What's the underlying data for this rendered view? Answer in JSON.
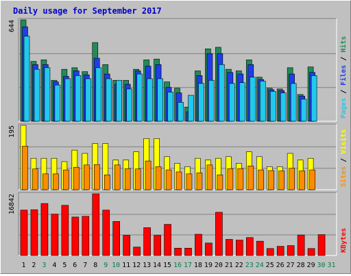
{
  "chart_data": {
    "type": "bar",
    "title": "Daily usage for September 2017",
    "categories": [
      "1",
      "2",
      "3",
      "4",
      "5",
      "6",
      "7",
      "8",
      "9",
      "10",
      "11",
      "12",
      "13",
      "14",
      "15",
      "16",
      "17",
      "18",
      "19",
      "20",
      "21",
      "22",
      "23",
      "24",
      "25",
      "26",
      "27",
      "28",
      "29",
      "30",
      "31"
    ],
    "weekend_days": [
      "3",
      "9",
      "10",
      "16",
      "17",
      "23",
      "24",
      "30",
      "31"
    ],
    "panels": [
      {
        "name": "hits-files-pages",
        "ymax_label": "644",
        "ymax": 644,
        "legend": [
          "Pages",
          "/",
          "Files",
          "/",
          "Hits"
        ],
        "series": [
          {
            "name": "Hits",
            "values": [
              644,
              380,
              390,
              260,
              330,
              340,
              315,
              500,
              360,
              260,
              260,
              330,
              390,
              395,
              250,
              210,
              90,
              320,
              460,
              470,
              330,
              320,
              390,
              280,
              210,
              205,
              340,
              170,
              345,
              0,
              0
            ]
          },
          {
            "name": "Files",
            "values": [
              600,
              360,
              360,
              250,
              285,
              320,
              295,
              400,
              300,
              235,
              235,
              320,
              350,
              360,
              215,
              180,
              60,
              290,
              430,
              430,
              310,
              300,
              360,
              265,
              200,
              195,
              300,
              160,
              310,
              0,
              0
            ]
          },
          {
            "name": "Pages",
            "values": [
              540,
              330,
              340,
              230,
              270,
              290,
              270,
              340,
              270,
              260,
              205,
              300,
              270,
              270,
              185,
              120,
              165,
              240,
              260,
              360,
              240,
              245,
              280,
              255,
              190,
              180,
              240,
              140,
              290,
              0,
              0
            ]
          }
        ],
        "colors": {
          "Hits": "#228b57",
          "Files": "#1f3ee8",
          "Pages": "#22c9ee"
        }
      },
      {
        "name": "visits-sites",
        "ymax_label": "195",
        "ymax": 195,
        "legend": [
          "Sites",
          "/",
          "Visits"
        ],
        "series": [
          {
            "name": "Visits",
            "values": [
              195,
              95,
              95,
              95,
              85,
              120,
              110,
              140,
              140,
              90,
              90,
              115,
              155,
              155,
              100,
              80,
              70,
              95,
              90,
              95,
              100,
              80,
              115,
              100,
              70,
              70,
              110,
              90,
              95,
              0,
              0
            ]
          },
          {
            "name": "Sites",
            "values": [
              132,
              63,
              48,
              48,
              60,
              68,
              75,
              76,
              45,
              75,
              64,
              63,
              87,
              70,
              60,
              54,
              48,
              51,
              75,
              45,
              64,
              64,
              72,
              60,
              58,
              57,
              65,
              57,
              60,
              0,
              0
            ]
          }
        ],
        "colors": {
          "Visits": "#ffff00",
          "Sites": "#ff8c00"
        }
      },
      {
        "name": "kbytes",
        "ymax_label": "16842",
        "ymax": 16842,
        "legend": [
          "KBytes"
        ],
        "series": [
          {
            "name": "KBytes",
            "values": [
              12400,
              12500,
              14200,
              11300,
              13700,
              10500,
              10700,
              16842,
              12400,
              9300,
              5500,
              2300,
              7600,
              5500,
              8500,
              2000,
              2000,
              5800,
              3400,
              11800,
              4400,
              4200,
              4900,
              3900,
              1900,
              2500,
              2700,
              5600,
              1900,
              5700,
              0
            ]
          }
        ],
        "colors": {
          "KBytes": "#ff0000"
        }
      }
    ]
  }
}
